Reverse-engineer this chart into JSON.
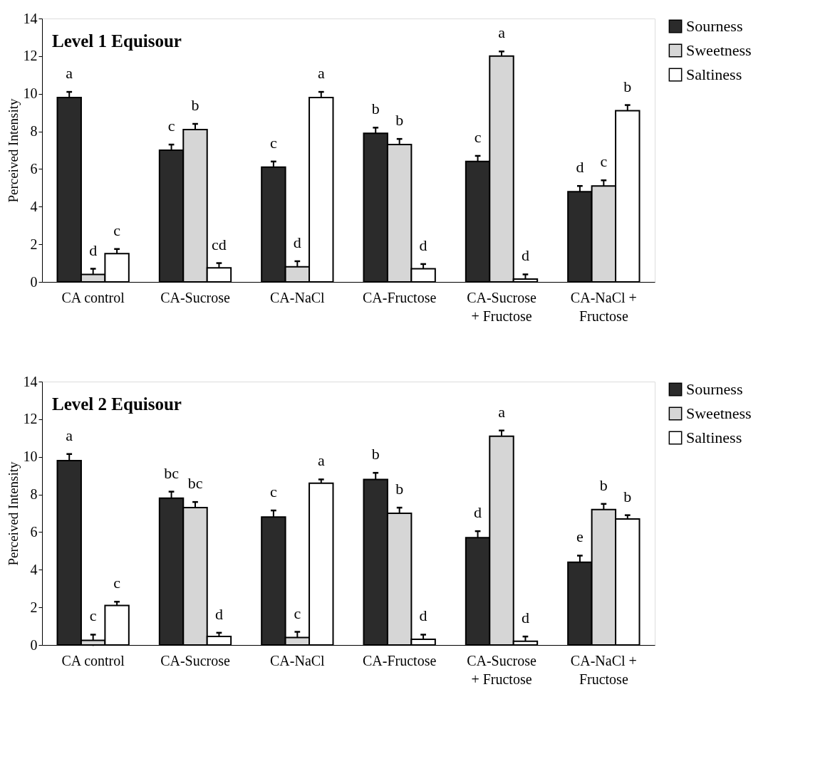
{
  "chart_data": [
    {
      "type": "bar",
      "title": "Level 1 Equisour",
      "ylabel": "Perceived Intensity",
      "categories": [
        "CA control",
        "CA-Sucrose",
        "CA-NaCl",
        "CA-Fructose",
        "CA-Sucrose\n+ Fructose",
        "CA-NaCl +\nFructose"
      ],
      "ylim": [
        0,
        14
      ],
      "yticks": [
        0,
        2,
        4,
        6,
        8,
        10,
        12,
        14
      ],
      "grid": false,
      "legend": "right",
      "series": [
        {
          "name": "Sourness",
          "color": "#2b2b2b",
          "values": [
            9.8,
            7.0,
            6.1,
            7.9,
            6.4,
            4.8
          ],
          "errors": [
            0.3,
            0.3,
            0.3,
            0.3,
            0.3,
            0.3
          ],
          "value_labels": [
            "a",
            "c",
            "c",
            "b",
            "c",
            "d"
          ]
        },
        {
          "name": "Sweetness",
          "color": "#d6d6d6",
          "values": [
            0.4,
            8.1,
            0.8,
            7.3,
            12.0,
            5.1
          ],
          "errors": [
            0.3,
            0.3,
            0.3,
            0.3,
            0.25,
            0.3
          ],
          "value_labels": [
            "d",
            "b",
            "d",
            "b",
            "a",
            "c"
          ]
        },
        {
          "name": "Saltiness",
          "color": "#ffffff",
          "values": [
            1.5,
            0.75,
            9.8,
            0.7,
            0.15,
            9.1
          ],
          "errors": [
            0.25,
            0.25,
            0.3,
            0.25,
            [
              0.15,
              0.4
            ],
            0.3
          ],
          "value_labels": [
            "c",
            "cd",
            "a",
            "d",
            "d",
            "b"
          ]
        }
      ]
    },
    {
      "type": "bar",
      "title": "Level 2 Equisour",
      "ylabel": "Perceived Intensity",
      "categories": [
        "CA control",
        "CA-Sucrose",
        "CA-NaCl",
        "CA-Fructose",
        "CA-Sucrose\n+ Fructose",
        "CA-NaCl +\nFructose"
      ],
      "ylim": [
        0,
        14
      ],
      "yticks": [
        0,
        2,
        4,
        6,
        8,
        10,
        12,
        14
      ],
      "grid": false,
      "legend": "right",
      "series": [
        {
          "name": "Sourness",
          "color": "#2b2b2b",
          "values": [
            9.8,
            7.8,
            6.8,
            8.8,
            5.7,
            4.4
          ],
          "errors": [
            0.35,
            0.35,
            0.35,
            0.35,
            0.35,
            0.35
          ],
          "value_labels": [
            "a",
            "bc",
            "c",
            "b",
            "d",
            "e"
          ]
        },
        {
          "name": "Sweetness",
          "color": "#d6d6d6",
          "values": [
            0.25,
            7.3,
            0.4,
            7.0,
            11.1,
            7.2
          ],
          "errors": [
            0.3,
            0.3,
            0.3,
            0.3,
            0.3,
            0.3
          ],
          "value_labels": [
            "c",
            "bc",
            "c",
            "b",
            "a",
            "b"
          ]
        },
        {
          "name": "Saltiness",
          "color": "#ffffff",
          "values": [
            2.1,
            0.45,
            8.6,
            0.3,
            0.2,
            6.7
          ],
          "errors": [
            0.2,
            0.2,
            0.2,
            [
              0.3,
              0.55
            ],
            [
              0.2,
              0.45
            ],
            0.2
          ],
          "value_labels": [
            "c",
            "d",
            "a",
            "d",
            "d",
            "b"
          ]
        }
      ]
    }
  ]
}
